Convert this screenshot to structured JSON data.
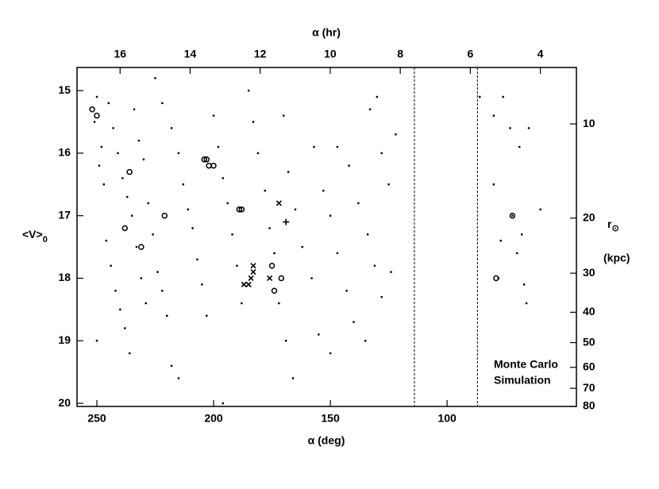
{
  "chart_data": {
    "type": "scatter",
    "top_axis_label": "α (hr)",
    "x_label": "α (deg)",
    "y_label": "<V>",
    "y_label_sub": "0",
    "y2_label": "r",
    "y2_label_sub": "⊙",
    "y2_unit": "(kpc)",
    "annotation": [
      "Monte Carlo",
      "Simulation"
    ],
    "xlim": [
      258.5,
      44.6
    ],
    "xticks": [
      250,
      200,
      150,
      100
    ],
    "x2lim": [
      17.23,
      2.97
    ],
    "x2ticks": [
      16,
      14,
      12,
      10,
      8,
      6,
      4
    ],
    "ylim": [
      20.05,
      14.63
    ],
    "yticks": [
      15,
      16,
      17,
      18,
      19,
      20
    ],
    "y2lim": [
      80,
      6.6
    ],
    "y2ticks": [
      10,
      20,
      30,
      40,
      50,
      60,
      70,
      80
    ],
    "y2_log": true,
    "vlines": [
      114,
      87
    ],
    "series": [
      {
        "name": "dots",
        "marker": "dot",
        "color": "#000000",
        "x": [
          250,
          251,
          248,
          249,
          247,
          246,
          244,
          242,
          240,
          238,
          250,
          245,
          243,
          241,
          239,
          237,
          235,
          233,
          231,
          229,
          236,
          234,
          232,
          230,
          228,
          226,
          224,
          222,
          220,
          218,
          215,
          225,
          222,
          218,
          215,
          213,
          211,
          209,
          207,
          205,
          203,
          200,
          198,
          196,
          194,
          192,
          190,
          188,
          196,
          185,
          183,
          181,
          178,
          176,
          174,
          172,
          169,
          166,
          170,
          168,
          165,
          162,
          158,
          155,
          150,
          157,
          153,
          150,
          147,
          143,
          140,
          147,
          142,
          138,
          134,
          131,
          128,
          135,
          133,
          130,
          128,
          125,
          122,
          124,
          86,
          80,
          76,
          73,
          69,
          65,
          80,
          77,
          72,
          68,
          67,
          60,
          78,
          66,
          70
        ],
        "y": [
          15.1,
          15.5,
          15.9,
          16.2,
          16.5,
          17.4,
          17.8,
          18.2,
          18.5,
          18.8,
          19.0,
          15.2,
          15.6,
          16.0,
          16.4,
          16.7,
          17.0,
          17.5,
          18.0,
          18.4,
          19.2,
          15.3,
          15.8,
          16.1,
          16.8,
          17.3,
          17.9,
          18.2,
          18.6,
          19.4,
          19.6,
          14.8,
          15.2,
          15.6,
          16.0,
          16.5,
          16.9,
          17.2,
          17.7,
          18.1,
          18.6,
          15.4,
          15.9,
          16.4,
          16.8,
          17.3,
          17.8,
          18.4,
          20.0,
          15.0,
          15.5,
          16.0,
          16.6,
          17.2,
          17.6,
          18.4,
          19.0,
          19.6,
          15.4,
          16.3,
          16.9,
          17.5,
          18.0,
          18.9,
          19.2,
          15.9,
          16.6,
          17.0,
          17.6,
          18.2,
          18.7,
          15.9,
          16.2,
          16.8,
          17.3,
          17.8,
          18.3,
          19.0,
          15.3,
          15.1,
          16.0,
          16.5,
          15.7,
          17.9,
          15.1,
          15.4,
          15.1,
          15.6,
          15.9,
          15.6,
          16.5,
          17.4,
          17.0,
          17.3,
          18.1,
          16.9,
          18.0,
          18.4,
          17.6
        ]
      },
      {
        "name": "circles",
        "marker": "circle",
        "color": "#000000",
        "x": [
          252,
          250,
          236,
          238,
          231,
          221,
          204,
          203,
          202,
          200,
          189,
          188,
          175,
          174,
          171,
          79,
          72
        ],
        "y": [
          15.3,
          15.4,
          16.3,
          17.2,
          17.5,
          17.0,
          16.1,
          16.1,
          16.2,
          16.2,
          16.9,
          16.9,
          17.8,
          18.2,
          18.0,
          18.0,
          17.0
        ]
      },
      {
        "name": "crosses",
        "marker": "x",
        "color": "#000000",
        "x": [
          172,
          183,
          183,
          184,
          185,
          187,
          176
        ],
        "y": [
          16.8,
          17.8,
          17.9,
          18.0,
          18.1,
          18.1,
          18.0
        ]
      },
      {
        "name": "plus",
        "marker": "plus",
        "color": "#000000",
        "x": [
          169
        ],
        "y": [
          17.1
        ]
      }
    ]
  }
}
